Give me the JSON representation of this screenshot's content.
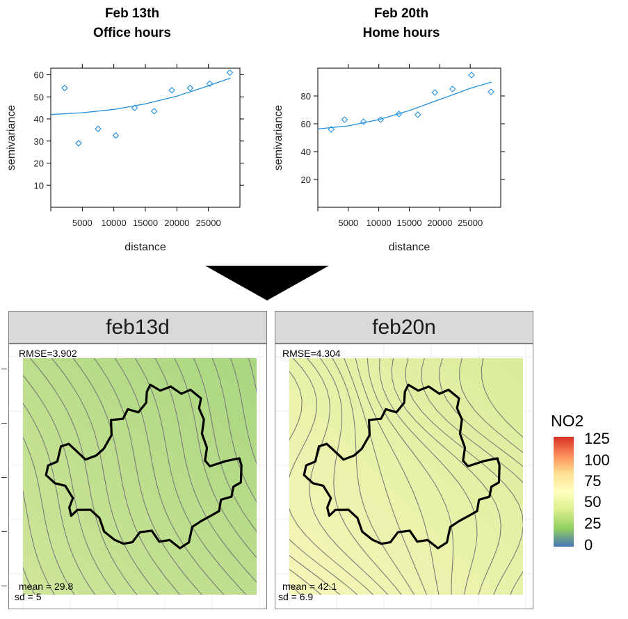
{
  "variograms": [
    {
      "title_line1": "Feb 13th",
      "title_line2": "Office hours",
      "xlabel": "distance",
      "ylabel": "semivariance"
    },
    {
      "title_line1": "Feb 20th",
      "title_line2": "Home hours",
      "xlabel": "distance",
      "ylabel": "semivariance"
    }
  ],
  "maps": [
    {
      "panel": "feb13d",
      "rmse": "RMSE=3.902",
      "mean": "mean = 29.8",
      "sd": "sd = 5"
    },
    {
      "panel": "feb20n",
      "rmse": "RMSE=4.304",
      "mean": "mean = 42.1",
      "sd": "sd = 6.9"
    }
  ],
  "legend": {
    "title": "NO2",
    "ticks": [
      "125",
      "100",
      "75",
      "50",
      "25",
      "0"
    ],
    "colors": [
      "#d73027",
      "#fc8d59",
      "#fee090",
      "#ffffbf",
      "#d9ef8b",
      "#91cf60",
      "#4575b4"
    ]
  },
  "colors": {
    "point": "#1f8fe0",
    "line": "#1f8fe0",
    "contour": "#7a7a7a",
    "outline": "#000000",
    "map1_fill_low": "#a9d67f",
    "map1_fill_high": "#cfe69a",
    "map2_fill_low": "#d9ec9a",
    "map2_fill_high": "#f6f6b8"
  },
  "chart_data": [
    {
      "type": "scatter",
      "title": "Feb 13th Office hours",
      "xlabel": "distance",
      "ylabel": "semivariance",
      "xlim": [
        0,
        30000
      ],
      "ylim": [
        0,
        63
      ],
      "xticks": [
        5000,
        10000,
        15000,
        20000,
        25000
      ],
      "yticks": [
        10,
        20,
        30,
        40,
        50,
        60
      ],
      "points": {
        "x": [
          2200,
          4400,
          7500,
          10300,
          13300,
          16400,
          19200,
          22100,
          25200,
          28400
        ],
        "y": [
          54,
          29,
          35.5,
          32.5,
          45,
          43.5,
          53,
          54,
          56,
          61
        ]
      },
      "fitted_curve": {
        "x": [
          0,
          5000,
          10000,
          15000,
          20000,
          25000,
          28500
        ],
        "y": [
          42,
          42.8,
          44.3,
          46.8,
          50.3,
          55,
          58.5
        ]
      }
    },
    {
      "type": "scatter",
      "title": "Feb 20th Home hours",
      "xlabel": "distance",
      "ylabel": "semivariance",
      "xlim": [
        0,
        30000
      ],
      "ylim": [
        0,
        100
      ],
      "xticks": [
        5000,
        10000,
        15000,
        20000,
        25000
      ],
      "yticks": [
        20,
        40,
        60,
        80
      ],
      "points": {
        "x": [
          2200,
          4400,
          7500,
          10300,
          13300,
          16400,
          19200,
          22100,
          25200,
          28400
        ],
        "y": [
          56,
          63,
          61.5,
          63,
          67,
          66.5,
          82.5,
          85,
          95,
          83
        ]
      },
      "fitted_curve": {
        "x": [
          0,
          5000,
          10000,
          15000,
          20000,
          25000,
          28500
        ],
        "y": [
          56.3,
          58.5,
          63,
          69.5,
          77.5,
          85.5,
          90
        ]
      }
    }
  ]
}
